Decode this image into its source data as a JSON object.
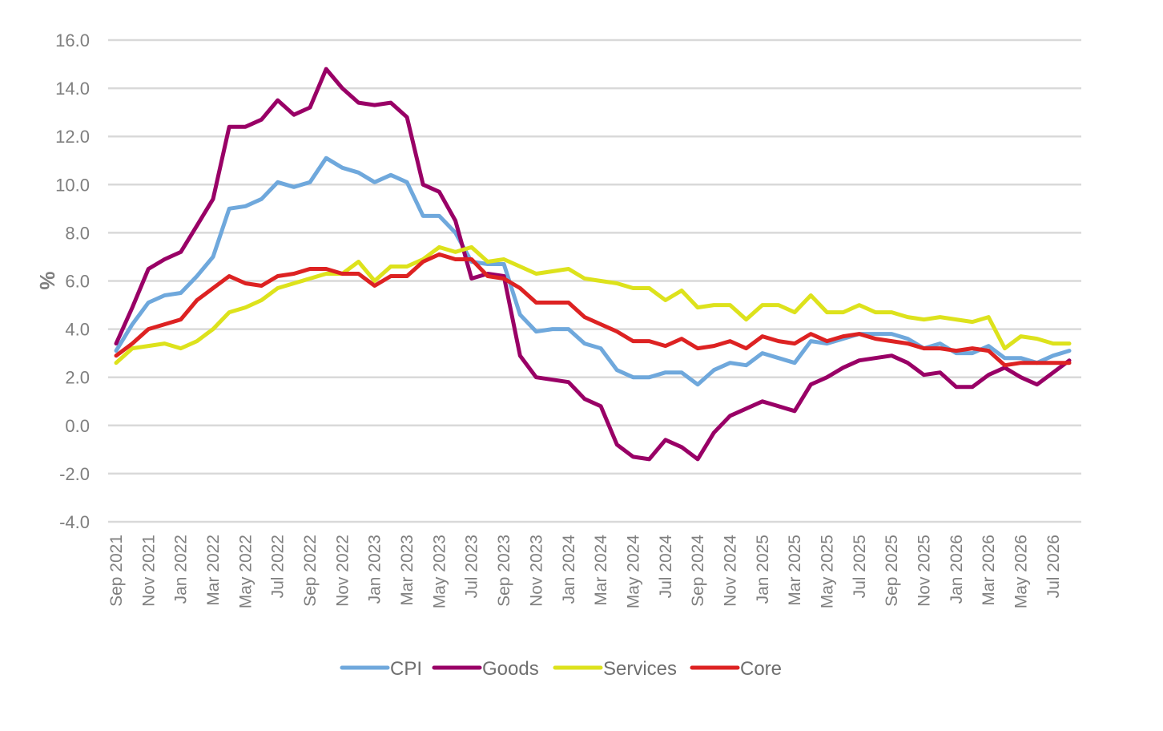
{
  "chart_data": {
    "type": "line",
    "title": "",
    "xlabel": "",
    "ylabel": "%",
    "ylim": [
      -4,
      16
    ],
    "yticks": [
      -4,
      -2,
      0,
      2,
      4,
      6,
      8,
      10,
      12,
      14,
      16
    ],
    "ytick_labels": [
      "-4.0",
      "-2.0",
      "0.0",
      "2.0",
      "4.0",
      "6.0",
      "8.0",
      "10.0",
      "12.0",
      "14.0",
      "16.0"
    ],
    "grid": true,
    "legend": "bottom",
    "x": [
      "Sep 2021",
      "Oct 2021",
      "Nov 2021",
      "Dec 2021",
      "Jan 2022",
      "Feb 2022",
      "Mar 2022",
      "Apr 2022",
      "May 2022",
      "Jun 2022",
      "Jul 2022",
      "Aug 2022",
      "Sep 2022",
      "Oct 2022",
      "Nov 2022",
      "Dec 2022",
      "Jan 2023",
      "Feb 2023",
      "Mar 2023",
      "Apr 2023",
      "May 2023",
      "Jun 2023",
      "Jul 2023",
      "Aug 2023",
      "Sep 2023",
      "Oct 2023",
      "Nov 2023",
      "Dec 2023",
      "Jan 2024",
      "Feb 2024",
      "Mar 2024",
      "Apr 2024",
      "May 2024",
      "Jun 2024",
      "Jul 2024",
      "Aug 2024",
      "Sep 2024",
      "Oct 2024",
      "Nov 2024",
      "Dec 2024",
      "Jan 2025",
      "Feb 2025",
      "Mar 2025",
      "Apr 2025",
      "May 2025",
      "Jun 2025",
      "Jul 2025",
      "Aug 2025",
      "Sep 2025",
      "Oct 2025",
      "Nov 2025",
      "Dec 2025",
      "Jan 2026",
      "Feb 2026",
      "Mar 2026",
      "Apr 2026",
      "May 2026",
      "Jun 2026",
      "Jul 2026",
      "Aug 2026"
    ],
    "x_tick_labels": [
      "Sep 2021",
      "Nov 2021",
      "Jan 2022",
      "Mar 2022",
      "May 2022",
      "Jul 2022",
      "Sep 2022",
      "Nov 2022",
      "Jan 2023",
      "Mar 2023",
      "May 2023",
      "Jul 2023",
      "Sep 2023",
      "Nov 2023",
      "Jan 2024",
      "Mar 2024",
      "May 2024",
      "Jul 2024",
      "Sep 2024",
      "Nov 2024",
      "Jan 2025",
      "Mar 2025",
      "May 2025",
      "Jul 2025",
      "Sep 2025",
      "Nov 2025",
      "Jan 2026",
      "Mar 2026",
      "May 2026",
      "Jul 2026"
    ],
    "series": [
      {
        "name": "CPI",
        "color": "#6fa8dc",
        "values": [
          3.1,
          4.2,
          5.1,
          5.4,
          5.5,
          6.2,
          7.0,
          9.0,
          9.1,
          9.4,
          10.1,
          9.9,
          10.1,
          11.1,
          10.7,
          10.5,
          10.1,
          10.4,
          10.1,
          8.7,
          8.7,
          8.0,
          6.8,
          6.7,
          6.7,
          4.6,
          3.9,
          4.0,
          4.0,
          3.4,
          3.2,
          2.3,
          2.0,
          2.0,
          2.2,
          2.2,
          1.7,
          2.3,
          2.6,
          2.5,
          3.0,
          2.8,
          2.6,
          3.5,
          3.4,
          3.6,
          3.8,
          3.8,
          3.8,
          3.6,
          3.2,
          3.4,
          3.0,
          3.0,
          3.3,
          2.8,
          2.8,
          2.6,
          2.9,
          3.1
        ]
      },
      {
        "name": "Goods",
        "color": "#990066",
        "values": [
          3.4,
          4.9,
          6.5,
          6.9,
          7.2,
          8.3,
          9.4,
          12.4,
          12.4,
          12.7,
          13.5,
          12.9,
          13.2,
          14.8,
          14.0,
          13.4,
          13.3,
          13.4,
          12.8,
          10.0,
          9.7,
          8.5,
          6.1,
          6.3,
          6.2,
          2.9,
          2.0,
          1.9,
          1.8,
          1.1,
          0.8,
          -0.8,
          -1.3,
          -1.4,
          -0.6,
          -0.9,
          -1.4,
          -0.3,
          0.4,
          0.7,
          1.0,
          0.8,
          0.6,
          1.7,
          2.0,
          2.4,
          2.7,
          2.8,
          2.9,
          2.6,
          2.1,
          2.2,
          1.6,
          1.6,
          2.1,
          2.4,
          2.0,
          1.7,
          2.2,
          2.7
        ]
      },
      {
        "name": "Services",
        "color": "#dde21c",
        "values": [
          2.6,
          3.2,
          3.3,
          3.4,
          3.2,
          3.5,
          4.0,
          4.7,
          4.9,
          5.2,
          5.7,
          5.9,
          6.1,
          6.3,
          6.3,
          6.8,
          6.0,
          6.6,
          6.6,
          6.9,
          7.4,
          7.2,
          7.4,
          6.8,
          6.9,
          6.6,
          6.3,
          6.4,
          6.5,
          6.1,
          6.0,
          5.9,
          5.7,
          5.7,
          5.2,
          5.6,
          4.9,
          5.0,
          5.0,
          4.4,
          5.0,
          5.0,
          4.7,
          5.4,
          4.7,
          4.7,
          5.0,
          4.7,
          4.7,
          4.5,
          4.4,
          4.5,
          4.4,
          4.3,
          4.5,
          3.2,
          3.7,
          3.6,
          3.4,
          3.4
        ]
      },
      {
        "name": "Core",
        "color": "#dd2222",
        "values": [
          2.9,
          3.4,
          4.0,
          4.2,
          4.4,
          5.2,
          5.7,
          6.2,
          5.9,
          5.8,
          6.2,
          6.3,
          6.5,
          6.5,
          6.3,
          6.3,
          5.8,
          6.2,
          6.2,
          6.8,
          7.1,
          6.9,
          6.9,
          6.2,
          6.1,
          5.7,
          5.1,
          5.1,
          5.1,
          4.5,
          4.2,
          3.9,
          3.5,
          3.5,
          3.3,
          3.6,
          3.2,
          3.3,
          3.5,
          3.2,
          3.7,
          3.5,
          3.4,
          3.8,
          3.5,
          3.7,
          3.8,
          3.6,
          3.5,
          3.4,
          3.2,
          3.2,
          3.1,
          3.2,
          3.1,
          2.5,
          2.6,
          2.6,
          2.6,
          2.6
        ]
      }
    ]
  }
}
